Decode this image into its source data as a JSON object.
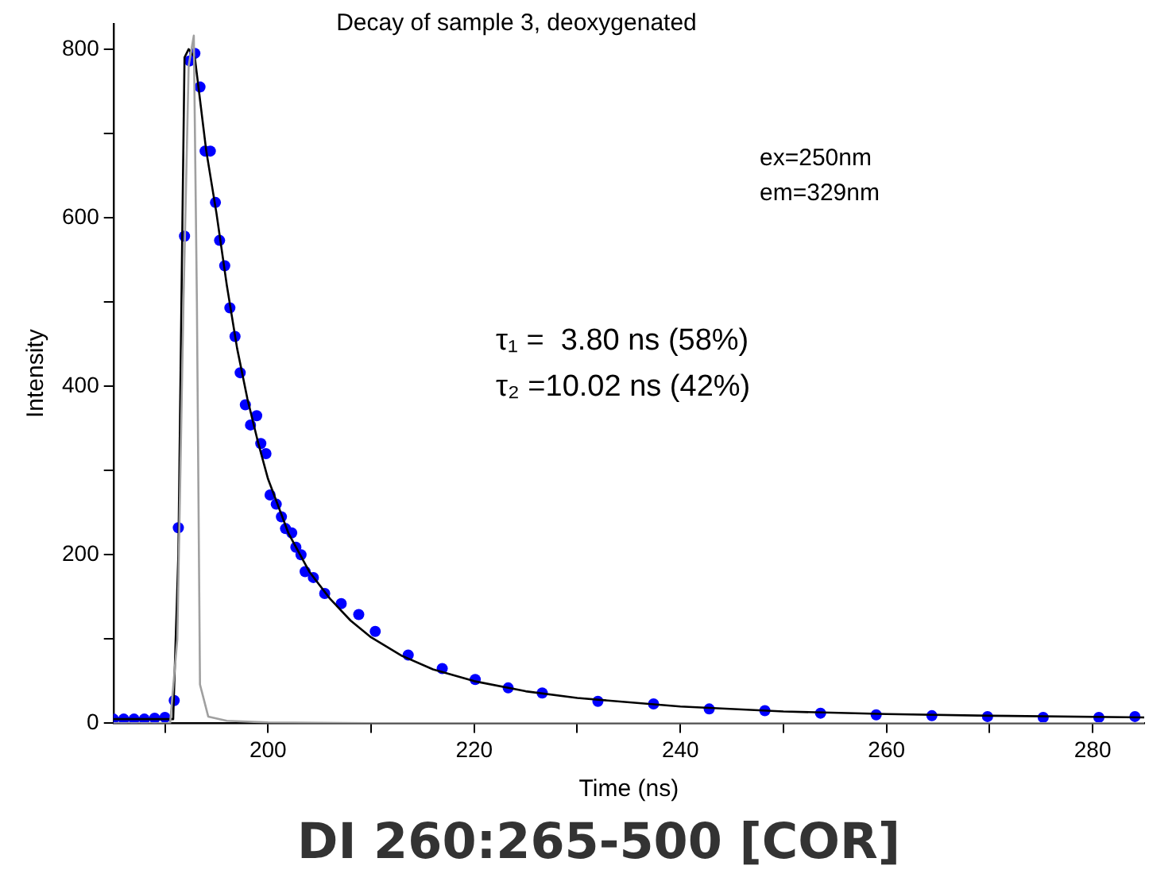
{
  "chart_data": {
    "type": "scatter",
    "title": "Decay of sample 3, deoxygenated",
    "xlabel": "Time (ns)",
    "ylabel": "Intensity",
    "annotations": [
      "ex=250nm",
      "em=329nm",
      "τ₁ =  3.80 ns (58%)",
      "τ₂ =10.02 ns (42%)",
      "DI 260:265-500 [COR]"
    ],
    "xlim": [
      185,
      285
    ],
    "ylim": [
      0,
      830
    ],
    "xticks": [
      {
        "value": 190,
        "label": null
      },
      200,
      {
        "value": 210,
        "label": null
      },
      220,
      {
        "value": 230,
        "label": null
      },
      240,
      {
        "value": 250,
        "label": null
      },
      260,
      {
        "value": 270,
        "label": null
      },
      280
    ],
    "yticks": [
      0,
      {
        "value": 100,
        "label": null
      },
      200,
      {
        "value": 300,
        "label": null
      },
      400,
      {
        "value": 500,
        "label": null
      },
      600,
      {
        "value": 700,
        "label": null
      },
      800
    ],
    "grid": false,
    "legend": false,
    "series": [
      {
        "type": "line",
        "color": "#a0a0a0",
        "x": [
          185,
          190.5,
          191.2,
          191.8,
          192.3,
          192.8,
          193.1,
          193.4,
          194.2,
          196,
          200,
          210,
          285
        ],
        "values": [
          0,
          0,
          100,
          500,
          780,
          816,
          500,
          46,
          8,
          3,
          1,
          0,
          0
        ]
      },
      {
        "type": "line",
        "color": "#000000",
        "x": [
          185,
          190.8,
          191.3,
          191.7,
          191.9,
          192.3,
          192.9,
          193.4,
          194,
          195,
          196,
          197,
          198,
          199,
          200,
          202,
          204,
          206,
          208,
          210,
          213,
          216,
          220,
          225,
          230,
          240,
          250,
          260,
          270,
          285
        ],
        "values": [
          5,
          5,
          200,
          600,
          790,
          800,
          790,
          740,
          680,
          605,
          520,
          445,
          385,
          335,
          290,
          225,
          180,
          148,
          122,
          102,
          80,
          64,
          50,
          38,
          30,
          20,
          14,
          11,
          9,
          7
        ]
      },
      {
        "marker": "circle",
        "color": "#0000ff",
        "x": [
          185,
          186,
          187,
          188,
          189,
          190,
          190.9,
          191.3,
          191.9,
          192.4,
          192.9,
          193.4,
          193.9,
          194.4,
          194.9,
          195.3,
          195.8,
          196.3,
          196.8,
          197.3,
          197.8,
          198.3,
          198.9,
          199.3,
          199.8,
          200.2,
          200.8,
          201.3,
          201.7,
          202.3,
          202.7,
          203.2,
          203.6,
          204.4,
          205.5,
          207.1,
          208.8,
          210.4,
          213.6,
          216.9,
          220.1,
          223.3,
          226.6,
          232,
          237.4,
          242.8,
          248.2,
          253.6,
          259,
          264.4,
          269.8,
          275.2,
          280.6,
          284.1
        ],
        "values": [
          5,
          5,
          5,
          5,
          6,
          7,
          27,
          232,
          578,
          786,
          795,
          755,
          679,
          679,
          618,
          573,
          543,
          493,
          459,
          416,
          378,
          354,
          365,
          332,
          320,
          271,
          260,
          245,
          231,
          226,
          209,
          200,
          180,
          173,
          154,
          142,
          129,
          109,
          81,
          65,
          52,
          42,
          36,
          26,
          23,
          17,
          15,
          12,
          10,
          9,
          8,
          7,
          7,
          8
        ]
      }
    ]
  }
}
